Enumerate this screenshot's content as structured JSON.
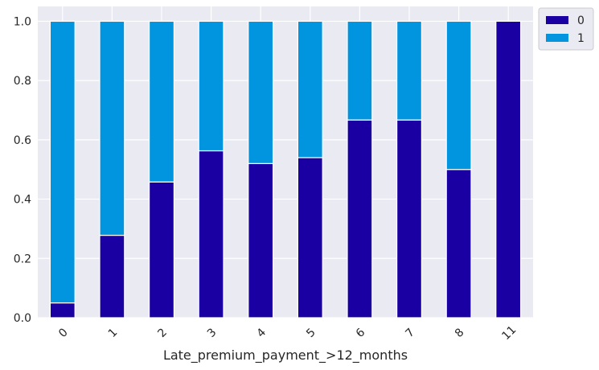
{
  "chart_data": {
    "type": "bar",
    "stacked": true,
    "xlabel": "Late_premium_payment_>12_months",
    "ylabel": "",
    "categories": [
      "0",
      "1",
      "2",
      "3",
      "4",
      "5",
      "6",
      "7",
      "8",
      "11"
    ],
    "ylim": [
      0,
      1.05
    ],
    "yticks": [
      "0.0",
      "0.2",
      "0.4",
      "0.6",
      "0.8",
      "1.0"
    ],
    "grid": true,
    "legend_position": "outside-top-right",
    "series": [
      {
        "name": "0",
        "color": "#1a00a3",
        "values": [
          0.05,
          0.278,
          0.458,
          0.563,
          0.52,
          0.54,
          0.667,
          0.667,
          0.5,
          1.0
        ]
      },
      {
        "name": "1",
        "color": "#0095de",
        "values": [
          0.95,
          0.722,
          0.542,
          0.437,
          0.48,
          0.46,
          0.333,
          0.333,
          0.5,
          0.0
        ]
      }
    ],
    "plot_background": "#eaeaf2",
    "grid_color": "#ffffff"
  }
}
